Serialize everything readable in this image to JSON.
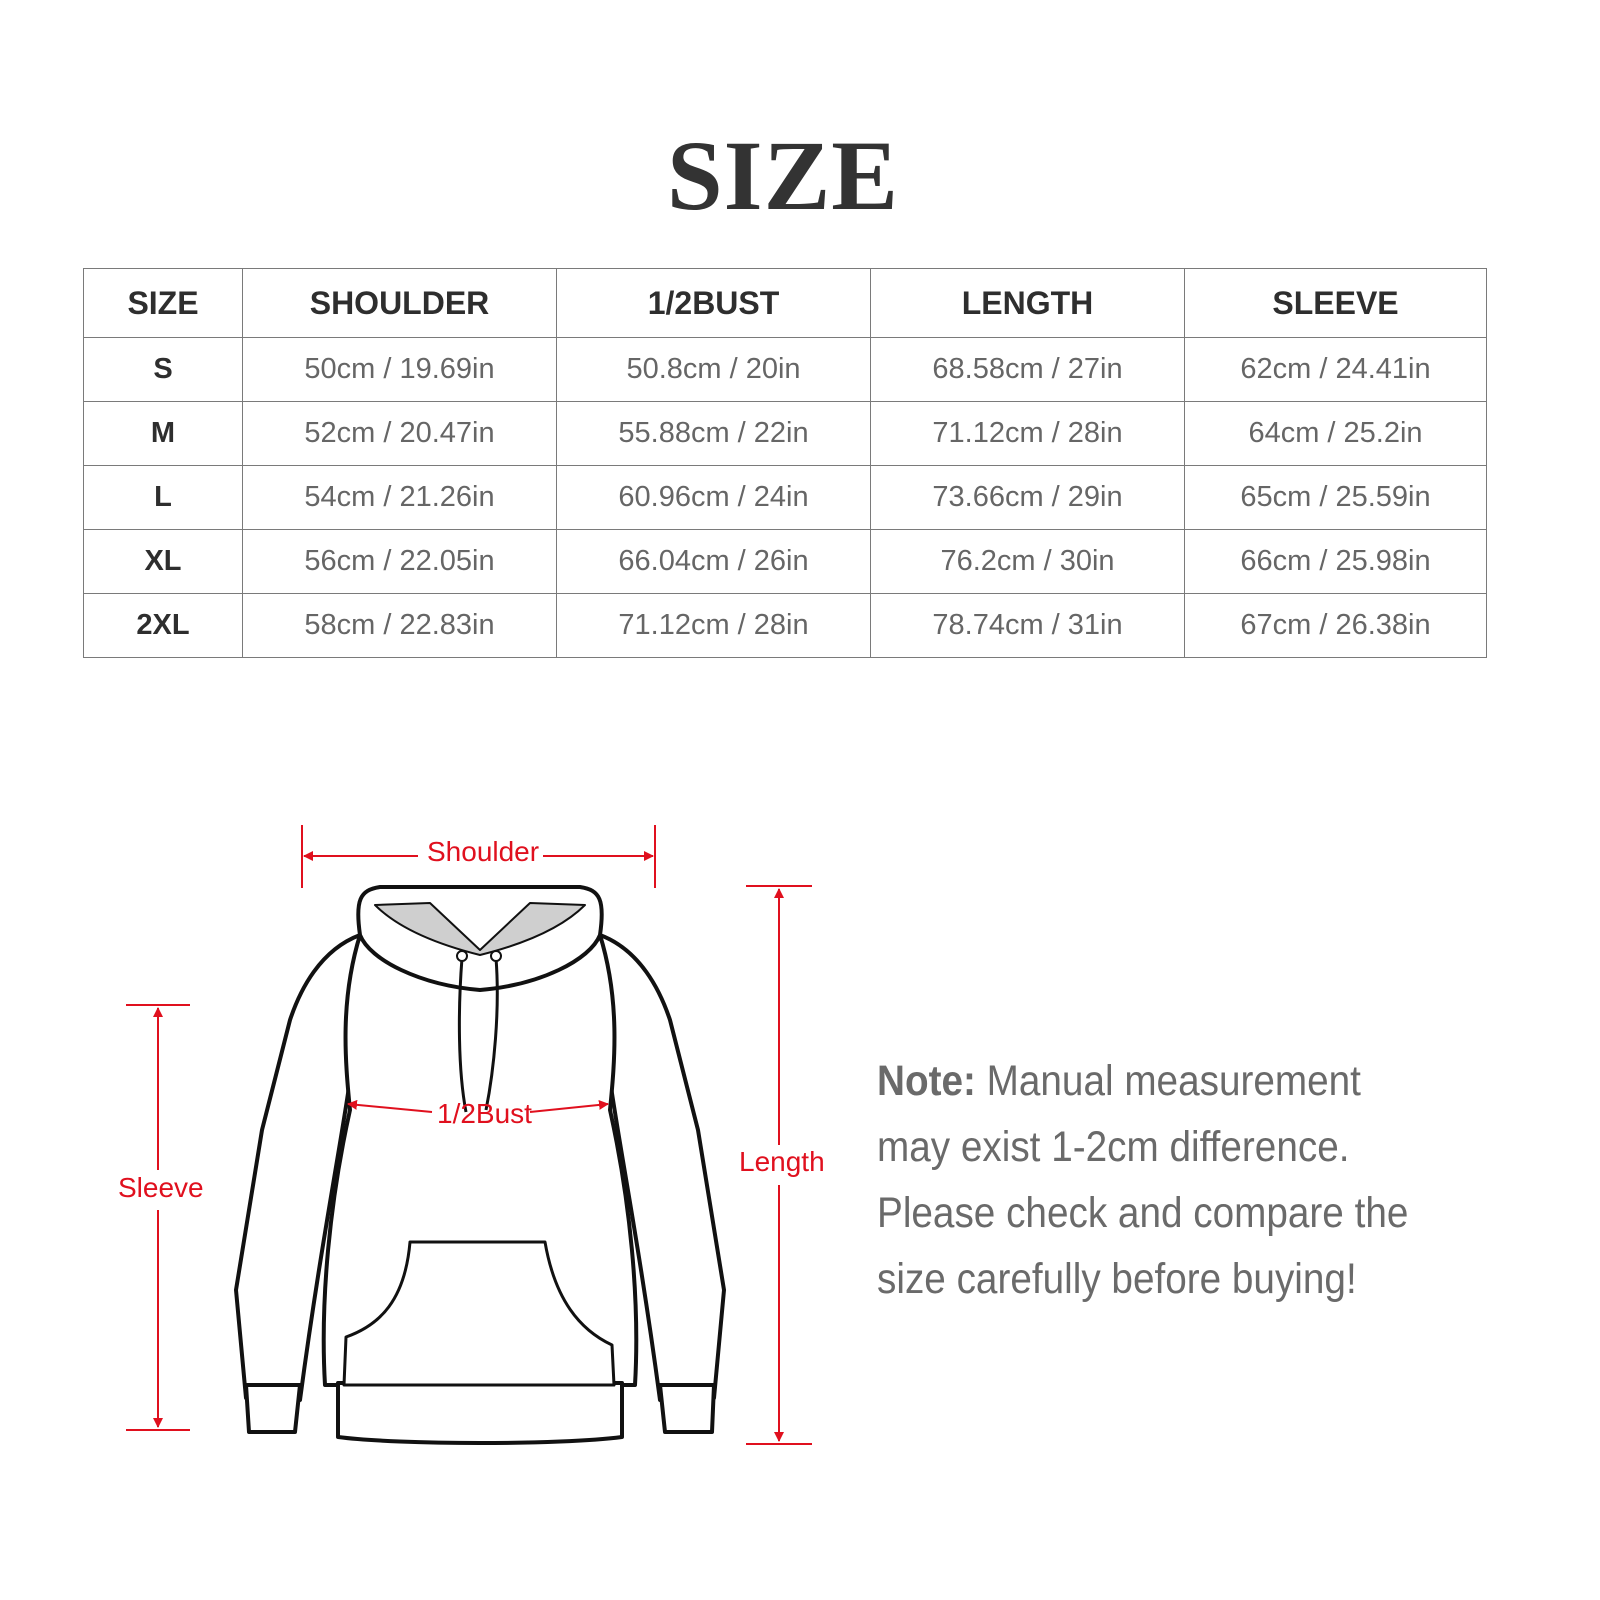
{
  "title": "SIZE",
  "table": {
    "headers": [
      "SIZE",
      "SHOULDER",
      "1/2BUST",
      "LENGTH",
      "SLEEVE"
    ],
    "rows": [
      [
        "S",
        "50cm / 19.69in",
        "50.8cm / 20in",
        "68.58cm / 27in",
        "62cm / 24.41in"
      ],
      [
        "M",
        "52cm / 20.47in",
        "55.88cm / 22in",
        "71.12cm / 28in",
        "64cm / 25.2in"
      ],
      [
        "L",
        "54cm / 21.26in",
        "60.96cm / 24in",
        "73.66cm / 29in",
        "65cm / 25.59in"
      ],
      [
        "XL",
        "56cm / 22.05in",
        "66.04cm / 26in",
        "76.2cm / 30in",
        "66cm / 25.98in"
      ],
      [
        "2XL",
        "58cm / 22.83in",
        "71.12cm / 28in",
        "78.74cm / 31in",
        "67cm / 26.38in"
      ]
    ]
  },
  "diagram": {
    "shoulder_label": "Shoulder",
    "bust_label": "1/2Bust",
    "sleeve_label": "Sleeve",
    "length_label": "Length",
    "accent_color": "#e0101e"
  },
  "note": {
    "label": "Note:",
    "text": " Manual measurement may exist 1-2cm difference. Please check and compare the size carefully before buying!"
  }
}
